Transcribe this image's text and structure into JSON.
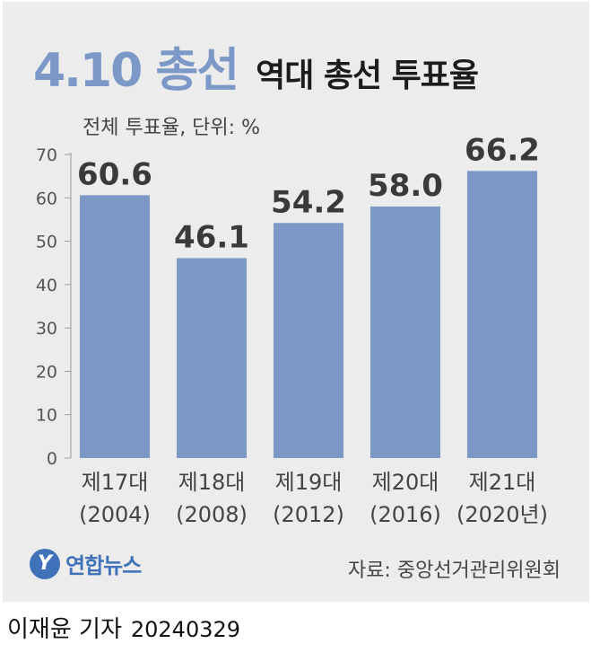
{
  "header": {
    "title_main": "4.10 총선",
    "title_sub": "역대 총선 투표율"
  },
  "unit_label": "전체 투표율, 단위: %",
  "footer": {
    "logo_text": "연합뉴스",
    "source": "자료: 중앙선거관리위원회"
  },
  "credit": {
    "author": "이재윤 기자",
    "date": "20240329"
  },
  "colors": {
    "bar": "#7b98c6",
    "panel": "#ececec",
    "accent": "#7b98c6"
  },
  "chart_data": {
    "type": "bar",
    "categories": [
      "제17대 (2004)",
      "제18대 (2008)",
      "제19대 (2012)",
      "제20대 (2016)",
      "제21대 (2020년)"
    ],
    "category_lines": [
      [
        "제17대",
        "(2004)"
      ],
      [
        "제18대",
        "(2008)"
      ],
      [
        "제19대",
        "(2012)"
      ],
      [
        "제20대",
        "(2016)"
      ],
      [
        "제21대",
        "(2020년)"
      ]
    ],
    "values": [
      60.6,
      46.1,
      54.2,
      58.0,
      66.2
    ],
    "value_labels": [
      "60.6",
      "46.1",
      "54.2",
      "58.0",
      "66.2"
    ],
    "ylabel": "전체 투표율, 단위: %",
    "ylim": [
      0,
      70
    ],
    "yticks": [
      0,
      10,
      20,
      30,
      40,
      50,
      60,
      70
    ],
    "grid": false,
    "legend": "none"
  }
}
